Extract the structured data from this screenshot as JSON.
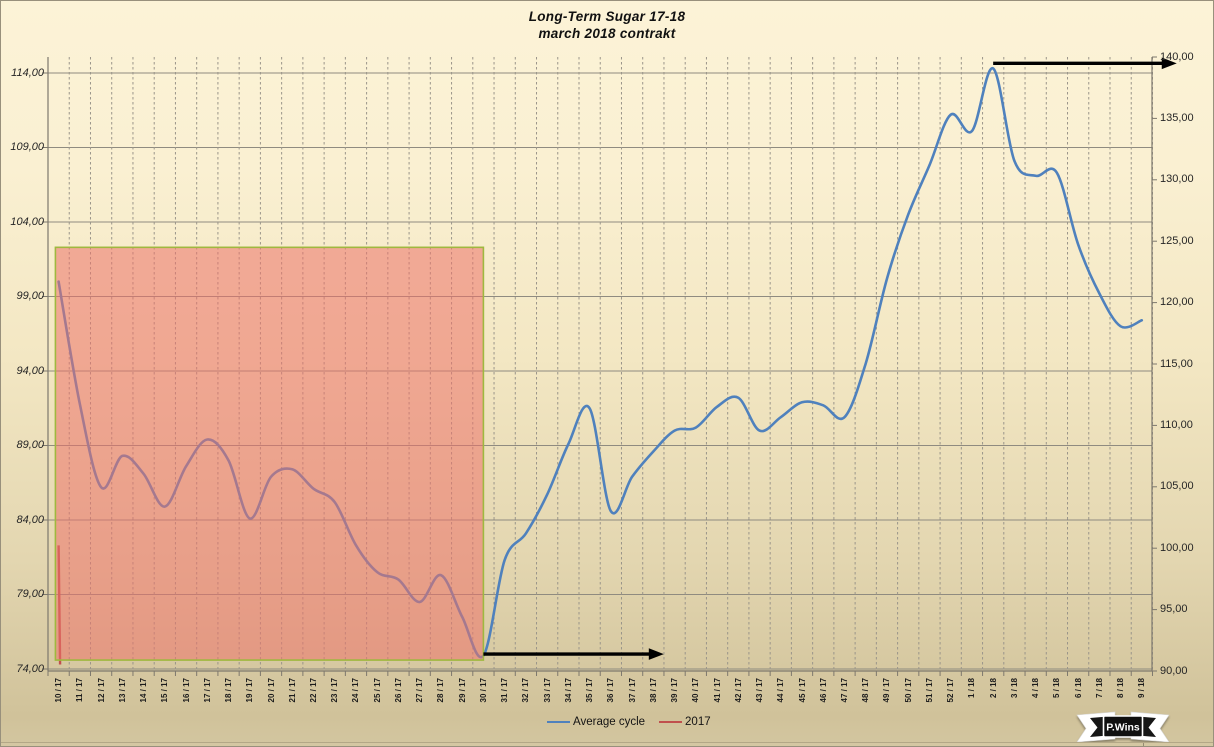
{
  "title": "Long-Term Sugar 17-18",
  "subtitle": "march 2018 contrakt",
  "watermark": "P.Wins",
  "colors": {
    "average_cycle": "#4f81bd",
    "series_2017": "#c0504d",
    "highlight_fill": "#ed736a",
    "highlight_border": "#9fb83f",
    "h_grid": "#8f8b80",
    "v_grid": "#9a958a",
    "frame": "#7d786d",
    "arrow": "#000000"
  },
  "chart_data": {
    "type": "line",
    "title": "Long-Term Sugar 17-18",
    "subtitle": "march 2018 contrakt",
    "grid": {
      "horizontal": "solid",
      "vertical": "dashed"
    },
    "legend_position": "bottom",
    "left_axis": {
      "min": 74,
      "max": 114,
      "step": 5,
      "tick_labels": [
        "114,00",
        "109,00",
        "104,00",
        "99,00",
        "94,00",
        "89,00",
        "84,00",
        "79,00",
        "74,00"
      ]
    },
    "right_axis": {
      "min": 90,
      "max": 140,
      "step": 5,
      "tick_labels": [
        "140,00",
        "135,00",
        "130,00",
        "125,00",
        "120,00",
        "115,00",
        "110,00",
        "105,00",
        "100,00",
        "95,00",
        "90,00"
      ]
    },
    "x_labels": [
      "10 / 17",
      "11 / 17",
      "12 / 17",
      "13 / 17",
      "14 / 17",
      "15 / 17",
      "16 / 17",
      "17 / 17",
      "18 / 17",
      "19 / 17",
      "20 / 17",
      "21 / 17",
      "22 / 17",
      "23 / 17",
      "24 / 17",
      "25 / 17",
      "26 / 17",
      "27 / 17",
      "28 / 17",
      "29 / 17",
      "30 / 17",
      "31 / 17",
      "32 / 17",
      "33 / 17",
      "34 / 17",
      "35 / 17",
      "36 / 17",
      "37 / 17",
      "38 / 17",
      "39 / 17",
      "40 / 17",
      "41 / 17",
      "42 / 17",
      "43 / 17",
      "44 / 17",
      "45 / 17",
      "46 / 17",
      "47 / 17",
      "48 / 17",
      "49 / 17",
      "50 / 17",
      "51 / 17",
      "52 / 17",
      "1 / 18",
      "2 / 18",
      "3 / 18",
      "4 / 18",
      "5 / 18",
      "6 / 18",
      "7 / 18",
      "8 / 18",
      "9 / 18"
    ],
    "series": [
      {
        "name": "Average cycle",
        "color": "#4f81bd",
        "axis": "left",
        "smooth": true,
        "values": [
          100.0,
          91.8,
          86.2,
          88.3,
          87.1,
          84.9,
          87.6,
          89.4,
          88.0,
          84.1,
          86.9,
          87.4,
          86.1,
          85.2,
          82.3,
          80.5,
          80.0,
          78.5,
          80.3,
          77.5,
          74.9,
          81.3,
          83.1,
          85.7,
          89.1,
          91.5,
          84.6,
          86.9,
          88.6,
          90.0,
          90.2,
          91.6,
          92.2,
          90.0,
          90.9,
          91.9,
          91.7,
          90.9,
          94.5,
          100.2,
          104.5,
          107.8,
          111.2,
          110.1,
          114.3,
          108.1,
          107.1,
          107.3,
          102.5,
          99.2,
          97.0,
          97.4
        ]
      },
      {
        "name": "2017",
        "color": "#c0504d",
        "axis": "left",
        "smooth": false,
        "points": [
          [
            0.0,
            82.3
          ],
          [
            0.07,
            74.3
          ]
        ]
      }
    ],
    "highlight_region": {
      "from_week_index": -0.15,
      "to_week_index": 20,
      "top_value": 102.3,
      "bottom_value": 74.6,
      "fill": "#ed736a",
      "fill_opacity": 0.55,
      "border": "#9fb83f"
    },
    "arrows": [
      {
        "name": "bottom-trend-arrow",
        "from_week_index": 20,
        "to_week_index": 28.4,
        "at_value": 75.0
      },
      {
        "name": "top-trend-arrow",
        "from_week_index": 44,
        "to_week_index": 52.55,
        "at_value": 114.65
      }
    ]
  },
  "legend": [
    {
      "label": "Average cycle",
      "color": "#4f81bd"
    },
    {
      "label": "2017",
      "color": "#c0504d"
    }
  ]
}
